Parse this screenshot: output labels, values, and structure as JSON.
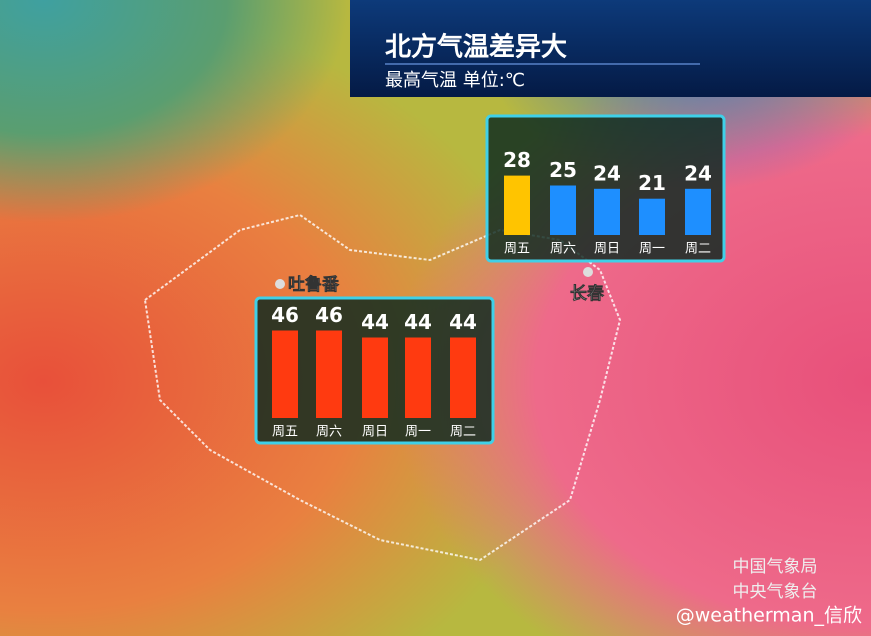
{
  "header": {
    "title": "北方气温差异大",
    "subtitle": "最高气温 单位:℃"
  },
  "map_labels": [
    "吐鲁番",
    "长春"
  ],
  "credits": [
    "中国气象局",
    "中央气象台",
    "@weatherman_信欣"
  ],
  "chart_data": [
    {
      "type": "bar",
      "categories": [
        "周五",
        "周六",
        "周日",
        "周一",
        "周二"
      ],
      "values": [
        46,
        46,
        44,
        44,
        44
      ],
      "colors": [
        "#ff3a10",
        "#ff3a10",
        "#ff3a10",
        "#ff3a10",
        "#ff3a10"
      ],
      "ylim": [
        21,
        48
      ]
    },
    {
      "type": "bar",
      "categories": [
        "周五",
        "周六",
        "周日",
        "周一",
        "周二"
      ],
      "values": [
        28,
        25,
        24,
        21,
        24
      ],
      "colors": [
        "#ffc400",
        "#1e8fff",
        "#1e8fff",
        "#1e8fff",
        "#1e8fff"
      ],
      "ylim": [
        10,
        30
      ]
    }
  ]
}
